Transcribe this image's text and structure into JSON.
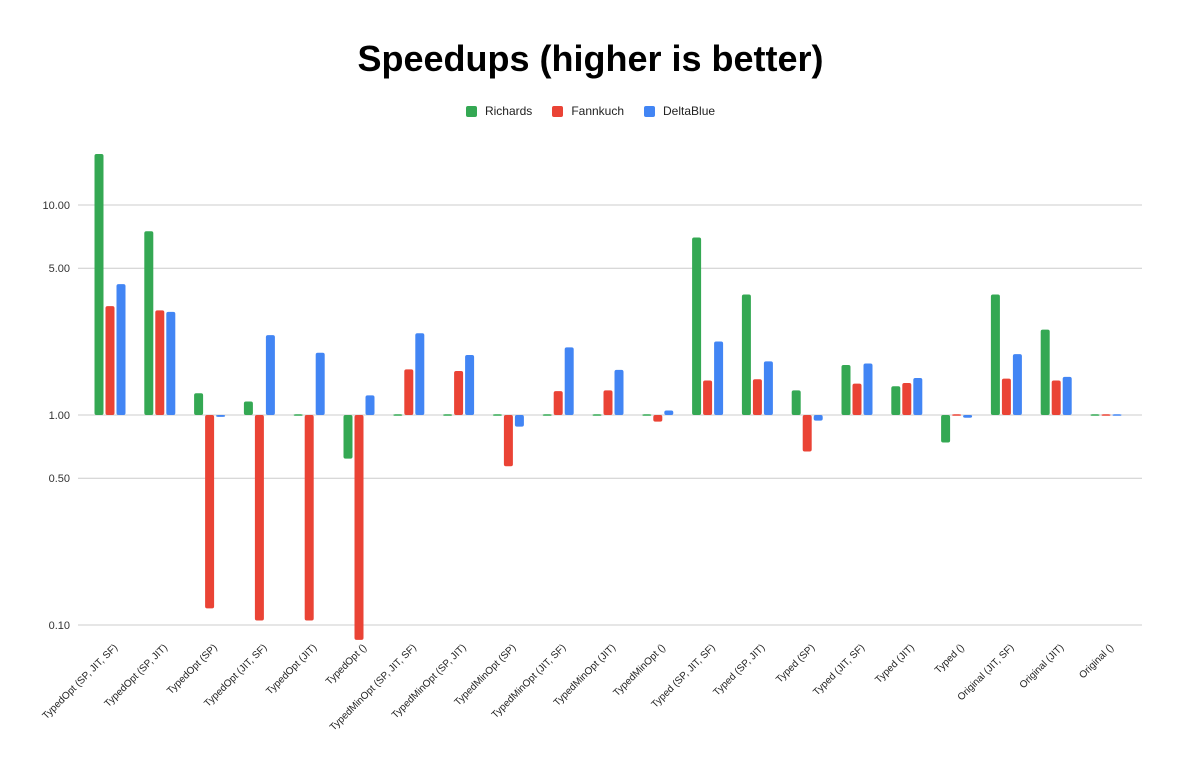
{
  "chart_data": {
    "type": "bar",
    "title": "Speedups (higher is better)",
    "xlabel": "",
    "ylabel": "",
    "y_scale": "log",
    "baseline": 1.0,
    "ylim": [
      0.08,
      20
    ],
    "y_ticks": [
      0.1,
      0.5,
      1.0,
      5.0,
      10.0
    ],
    "y_tick_labels": [
      "0.10",
      "0.50",
      "1.00",
      "5.00",
      "10.00"
    ],
    "grid": true,
    "legend_position": "top-center",
    "categories": [
      "TypedOpt (SP, JIT, SF)",
      "TypedOpt (SP, JIT)",
      "TypedOpt (SP)",
      "TypedOpt (JIT, SF)",
      "TypedOpt (JIT)",
      "TypedOpt ()",
      "TypedMinOpt (SP, JIT, SF)",
      "TypedMinOpt (SP, JIT)",
      "TypedMinOpt (SP)",
      "TypedMinOpt (JIT, SF)",
      "TypedMinOpt (JIT)",
      "TypedMinOpt ()",
      "Typed (SP, JIT, SF)",
      "Typed (SP, JIT)",
      "Typed (SP)",
      "Typed (JIT, SF)",
      "Typed (JIT)",
      "Typed ()",
      "Original (JIT, SF)",
      "Original (JIT)",
      "Original ()"
    ],
    "series": [
      {
        "name": "Richards",
        "color": "#34a853",
        "values": [
          17.5,
          7.5,
          1.27,
          1.16,
          1.0,
          0.62,
          1.0,
          1.0,
          1.0,
          1.0,
          1.0,
          1.0,
          7.0,
          3.75,
          1.31,
          1.73,
          1.37,
          0.74,
          3.75,
          2.55,
          1.0
        ]
      },
      {
        "name": "Fannkuch",
        "color": "#ea4335",
        "values": [
          3.3,
          3.15,
          0.12,
          0.105,
          0.105,
          0.085,
          1.65,
          1.62,
          0.57,
          1.3,
          1.31,
          0.93,
          1.46,
          1.48,
          0.67,
          1.41,
          1.42,
          1.0,
          1.49,
          1.46,
          1.0
        ]
      },
      {
        "name": "DeltaBlue",
        "color": "#4285f4",
        "values": [
          4.2,
          3.1,
          0.98,
          2.4,
          1.98,
          1.24,
          2.45,
          1.93,
          0.88,
          2.1,
          1.64,
          1.05,
          2.24,
          1.8,
          0.94,
          1.76,
          1.5,
          0.97,
          1.95,
          1.52,
          1.0
        ]
      }
    ]
  }
}
